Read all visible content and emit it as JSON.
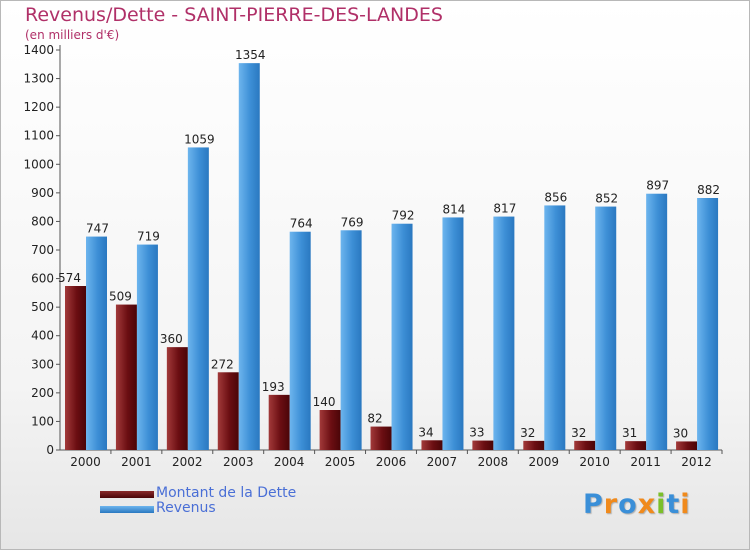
{
  "title": "Revenus/Dette - SAINT-PIERRE-DES-LANDES",
  "subtitle": "(en milliers d'€)",
  "colors": {
    "dette": "#6b0e12",
    "revenus": "#3d8fd6",
    "title": "#b03068",
    "legend_text": "#4a6fd6"
  },
  "legend": [
    {
      "label": "Montant de la Dette",
      "color": "#6b0e12"
    },
    {
      "label": "Revenus",
      "color": "#3d8fd6"
    }
  ],
  "logo": "Proxiti",
  "chart_data": {
    "type": "bar",
    "title": "Revenus/Dette - SAINT-PIERRE-DES-LANDES",
    "subtitle": "(en milliers d'€)",
    "xlabel": "",
    "ylabel": "",
    "ylim": [
      0,
      1400
    ],
    "yticks": [
      0,
      100,
      200,
      300,
      400,
      500,
      600,
      700,
      800,
      900,
      1000,
      1100,
      1200,
      1300,
      1400
    ],
    "grid": false,
    "legend_position": "bottom-left",
    "categories": [
      "2000",
      "2001",
      "2002",
      "2003",
      "2004",
      "2005",
      "2006",
      "2007",
      "2008",
      "2009",
      "2010",
      "2011",
      "2012"
    ],
    "series": [
      {
        "name": "Montant de la Dette",
        "values": [
          574,
          509,
          360,
          272,
          193,
          140,
          82,
          34,
          33,
          32,
          32,
          31,
          30
        ]
      },
      {
        "name": "Revenus",
        "values": [
          747,
          719,
          1059,
          1354,
          764,
          769,
          792,
          814,
          817,
          856,
          852,
          897,
          882
        ]
      }
    ]
  }
}
